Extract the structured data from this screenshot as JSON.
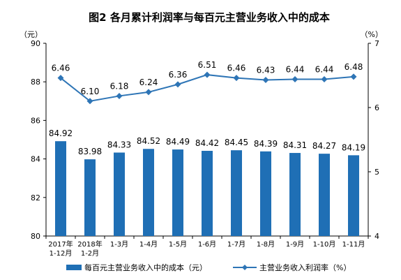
{
  "chart_data": {
    "type": "bar",
    "title": "图2  各月累计利润率与每百元主营业务收入中的成本",
    "categories": [
      [
        "2017年",
        "1-12月"
      ],
      [
        "2018年",
        "1-2月"
      ],
      [
        "1-3月"
      ],
      [
        "1-4月"
      ],
      [
        "1-5月"
      ],
      [
        "1-6月"
      ],
      [
        "1-7月"
      ],
      [
        "1-8月"
      ],
      [
        "1-9月"
      ],
      [
        "1-10月"
      ],
      [
        "1-11月"
      ]
    ],
    "series": [
      {
        "name": "每百元主营业务收入中的成本（元）",
        "type": "bar",
        "axis": "left",
        "values": [
          84.92,
          83.98,
          84.33,
          84.52,
          84.49,
          84.42,
          84.45,
          84.39,
          84.31,
          84.27,
          84.19
        ],
        "labels": [
          "84.92",
          "83.98",
          "84.33",
          "84.52",
          "84.49",
          "84.42",
          "84.45",
          "84.39",
          "84.31",
          "84.27",
          "84.19"
        ]
      },
      {
        "name": "主营业务收入利润率（%）",
        "type": "line",
        "axis": "right",
        "values": [
          6.46,
          6.1,
          6.18,
          6.24,
          6.36,
          6.51,
          6.46,
          6.43,
          6.44,
          6.44,
          6.48
        ],
        "labels": [
          "6.46",
          "6.10",
          "6.18",
          "6.24",
          "6.36",
          "6.51",
          "6.46",
          "6.43",
          "6.44",
          "6.44",
          "6.48"
        ]
      }
    ],
    "y_left": {
      "unit": "（元）",
      "range": [
        80,
        90
      ],
      "ticks": [
        "80",
        "82",
        "84",
        "86",
        "88",
        "90"
      ],
      "tick_values": [
        80,
        82,
        84,
        86,
        88,
        90
      ]
    },
    "y_right": {
      "unit": "（%）",
      "range": [
        4,
        7
      ],
      "ticks": [
        "4",
        "5",
        "6",
        "7"
      ],
      "tick_values": [
        4,
        5,
        6,
        7
      ]
    },
    "grid": false,
    "legend": "bottom",
    "colors": {
      "bar": "#1f6fb5",
      "line": "#2e75b6",
      "axis": "#000000"
    }
  }
}
